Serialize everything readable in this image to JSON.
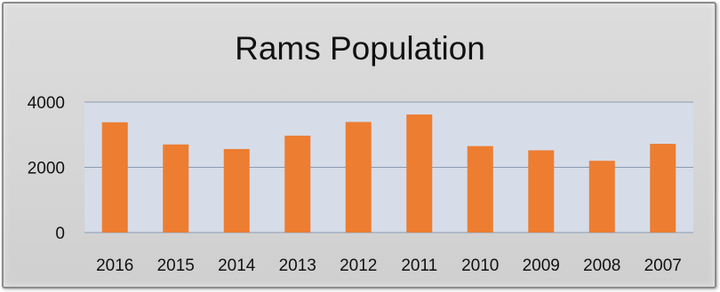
{
  "chart_data": {
    "type": "bar",
    "title": "Rams Population",
    "xlabel": "",
    "ylabel": "",
    "categories": [
      "2016",
      "2015",
      "2014",
      "2013",
      "2012",
      "2011",
      "2010",
      "2009",
      "2008",
      "2007"
    ],
    "values": [
      3380,
      2700,
      2560,
      2970,
      3390,
      3620,
      2650,
      2520,
      2200,
      2720
    ],
    "ylim": [
      0,
      4000
    ],
    "yticks": [
      "0",
      "2000",
      "4000"
    ],
    "grid": true,
    "legend": "none",
    "colors": {
      "bar": "#ed7d31",
      "plot_background": "#d6dde8",
      "gridline": "#8a9bb3"
    }
  }
}
